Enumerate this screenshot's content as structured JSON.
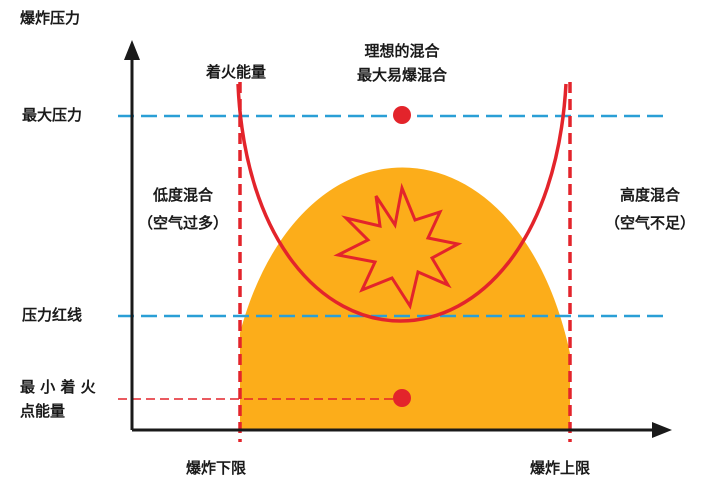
{
  "axis": {
    "y_label": "爆炸压力"
  },
  "labels": {
    "ignition_energy": "着火能量",
    "ideal_mix_line1": "理想的混合",
    "ideal_mix_line2": "最大易爆混合",
    "max_pressure": "最大压力",
    "lean_mix_line1": "低度混合",
    "lean_mix_line2": "（空气过多）",
    "rich_mix_line1": "高度混合",
    "rich_mix_line2": "（空气不足）",
    "pressure_redline": "压力红线",
    "min_ignition_line1": "最 小 着 火",
    "min_ignition_line2": "点能量",
    "lower_limit": "爆炸下限",
    "upper_limit": "爆炸上限"
  },
  "colors": {
    "pressure_fill": "#fcad1a",
    "ignition_curve": "#e3242b",
    "reference_line": "#2a9fd6",
    "axis": "#1a1a1a",
    "explosion_fill": "#fcad1a",
    "explosion_stroke": "#e3242b"
  },
  "icons": {
    "explosion": "explosion-burst-icon"
  }
}
